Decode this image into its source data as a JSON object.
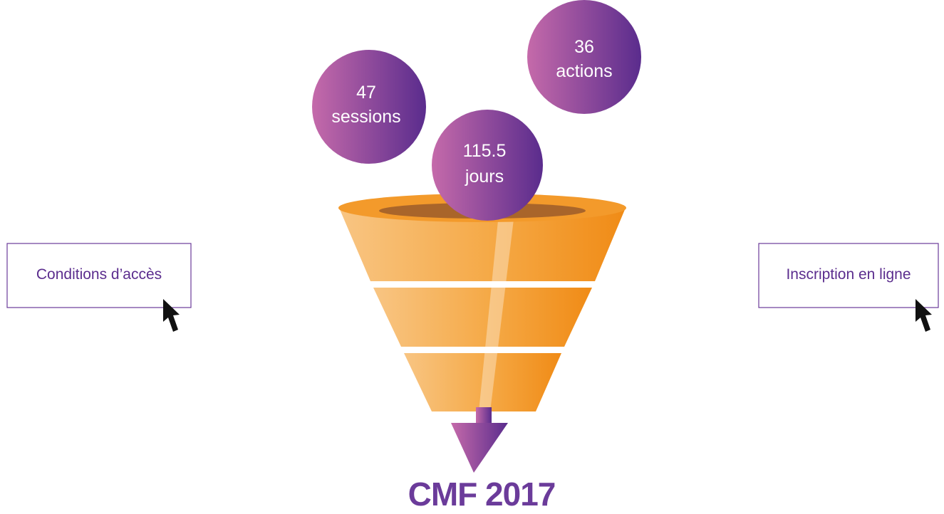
{
  "bubbles": [
    {
      "value": 47,
      "label": "sessions"
    },
    {
      "value": 115.5,
      "label": "jours"
    },
    {
      "value": 36,
      "label": "actions"
    }
  ],
  "buttons": {
    "left": "Conditions d’accès",
    "right": "Inscription en ligne"
  },
  "title": "CMF 2017"
}
